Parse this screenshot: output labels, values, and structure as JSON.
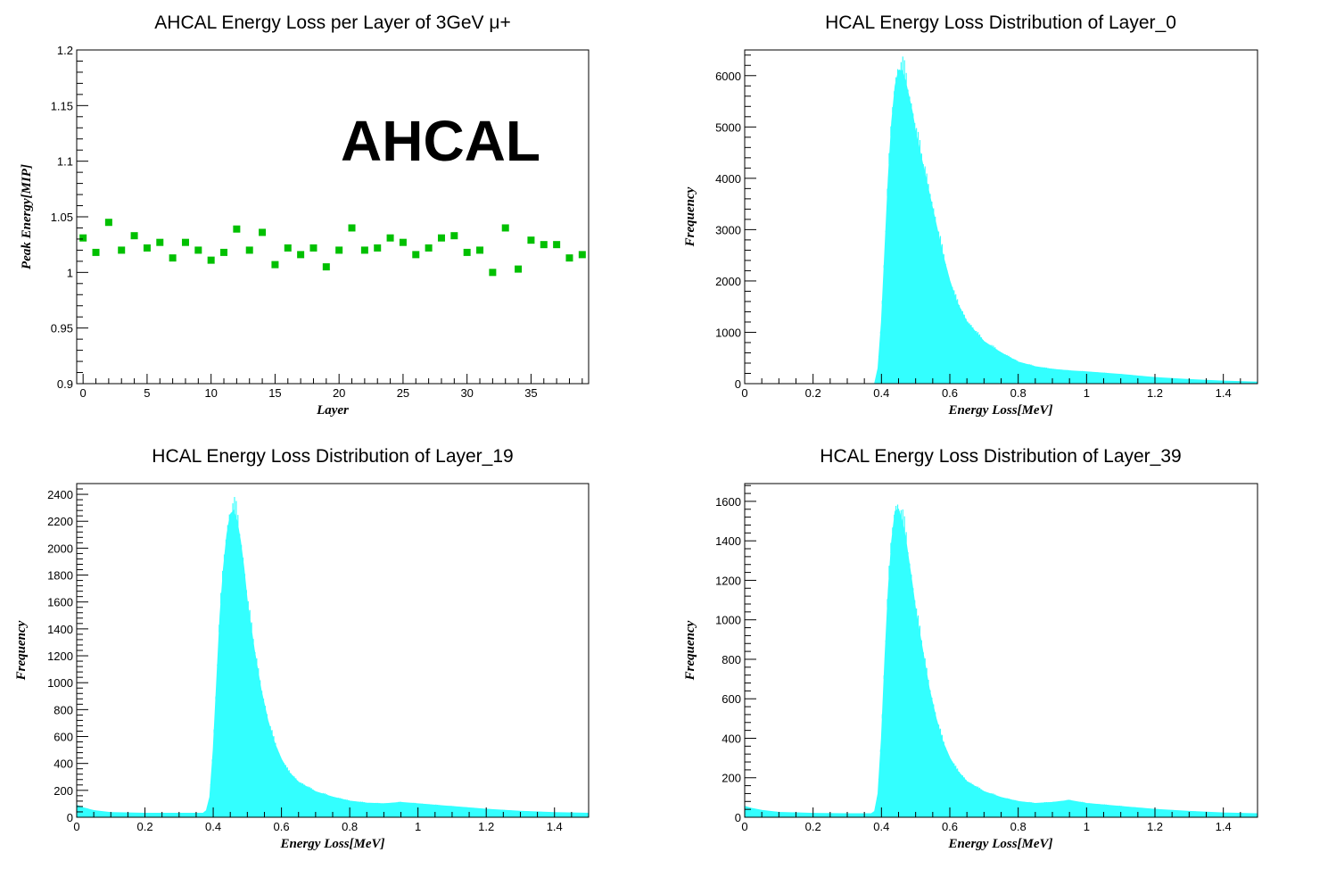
{
  "chart_data": [
    {
      "type": "scatter",
      "title": "AHCAL Energy Loss per Layer of 3GeV μ+",
      "xlabel": "Layer",
      "ylabel": "Peak Energy[MIP]",
      "xlim": [
        -0.5,
        39.5
      ],
      "ylim": [
        0.9,
        1.2
      ],
      "xticks": [
        0,
        5,
        10,
        15,
        20,
        25,
        30,
        35
      ],
      "yticks": [
        0.9,
        0.95,
        1,
        1.05,
        1.1,
        1.15,
        1.2
      ],
      "annotation": "AHCAL",
      "marker_color": "#00c000",
      "x": [
        0,
        1,
        2,
        3,
        4,
        5,
        6,
        7,
        8,
        9,
        10,
        11,
        12,
        13,
        14,
        15,
        16,
        17,
        18,
        19,
        20,
        21,
        22,
        23,
        24,
        25,
        26,
        27,
        28,
        29,
        30,
        31,
        32,
        33,
        34,
        35,
        36,
        37,
        38,
        39
      ],
      "y": [
        1.031,
        1.018,
        1.045,
        1.02,
        1.033,
        1.022,
        1.027,
        1.013,
        1.027,
        1.02,
        1.011,
        1.018,
        1.039,
        1.02,
        1.036,
        1.007,
        1.022,
        1.016,
        1.022,
        1.005,
        1.02,
        1.04,
        1.02,
        1.022,
        1.031,
        1.027,
        1.016,
        1.022,
        1.031,
        1.033,
        1.018,
        1.02,
        1.0,
        1.04,
        1.003,
        1.029,
        1.025,
        1.025,
        1.013,
        1.016
      ]
    },
    {
      "type": "area",
      "title": "HCAL Energy Loss Distribution of Layer_0",
      "xlabel": "Energy Loss[MeV]",
      "ylabel": "Frequency",
      "xlim": [
        0,
        1.5
      ],
      "ylim": [
        0,
        6500
      ],
      "xticks": [
        0,
        0.2,
        0.4,
        0.6,
        0.8,
        1,
        1.2,
        1.4
      ],
      "yticks": [
        0,
        1000,
        2000,
        3000,
        4000,
        5000,
        6000
      ],
      "fill_color": "#33ffff",
      "x": [
        0.0,
        0.36,
        0.38,
        0.39,
        0.4,
        0.41,
        0.42,
        0.43,
        0.44,
        0.45,
        0.46,
        0.47,
        0.48,
        0.49,
        0.5,
        0.52,
        0.54,
        0.56,
        0.58,
        0.6,
        0.62,
        0.65,
        0.7,
        0.75,
        0.8,
        0.85,
        0.9,
        0.95,
        1.0,
        1.1,
        1.2,
        1.3,
        1.4,
        1.5
      ],
      "y": [
        0,
        0,
        0,
        300,
        1200,
        2600,
        4000,
        5100,
        5800,
        6100,
        6100,
        5900,
        5600,
        5300,
        4900,
        4300,
        3700,
        3100,
        2500,
        2000,
        1600,
        1200,
        820,
        600,
        420,
        330,
        280,
        250,
        230,
        180,
        120,
        80,
        50,
        30
      ]
    },
    {
      "type": "area",
      "title": "HCAL Energy Loss Distribution of Layer_19",
      "xlabel": "Energy Loss[MeV]",
      "ylabel": "Frequency",
      "xlim": [
        0,
        1.5
      ],
      "ylim": [
        0,
        2480
      ],
      "xticks": [
        0,
        0.2,
        0.4,
        0.6,
        0.8,
        1,
        1.2,
        1.4
      ],
      "yticks": [
        0,
        200,
        400,
        600,
        800,
        1000,
        1200,
        1400,
        1600,
        1800,
        2000,
        2200,
        2400
      ],
      "fill_color": "#33ffff",
      "x": [
        0.0,
        0.02,
        0.05,
        0.1,
        0.2,
        0.3,
        0.37,
        0.38,
        0.39,
        0.4,
        0.41,
        0.42,
        0.43,
        0.44,
        0.45,
        0.46,
        0.47,
        0.48,
        0.49,
        0.5,
        0.52,
        0.54,
        0.56,
        0.58,
        0.6,
        0.62,
        0.65,
        0.7,
        0.75,
        0.8,
        0.85,
        0.9,
        0.95,
        1.0,
        1.1,
        1.2,
        1.3,
        1.4,
        1.5
      ],
      "y": [
        90,
        70,
        50,
        35,
        30,
        30,
        30,
        50,
        150,
        500,
        1000,
        1500,
        1850,
        2100,
        2250,
        2280,
        2200,
        2050,
        1850,
        1600,
        1250,
        950,
        720,
        550,
        430,
        340,
        260,
        190,
        150,
        120,
        105,
        100,
        110,
        100,
        80,
        60,
        45,
        35,
        30
      ]
    },
    {
      "type": "area",
      "title": "HCAL Energy Loss Distribution of Layer_39",
      "xlabel": "Energy Loss[MeV]",
      "ylabel": "Frequency",
      "xlim": [
        0,
        1.5
      ],
      "ylim": [
        0,
        1690
      ],
      "xticks": [
        0,
        0.2,
        0.4,
        0.6,
        0.8,
        1,
        1.2,
        1.4
      ],
      "yticks": [
        0,
        200,
        400,
        600,
        800,
        1000,
        1200,
        1400,
        1600
      ],
      "fill_color": "#33ffff",
      "x": [
        0.0,
        0.02,
        0.05,
        0.1,
        0.2,
        0.3,
        0.37,
        0.38,
        0.39,
        0.4,
        0.41,
        0.42,
        0.43,
        0.44,
        0.45,
        0.46,
        0.47,
        0.48,
        0.49,
        0.5,
        0.52,
        0.54,
        0.56,
        0.58,
        0.6,
        0.62,
        0.65,
        0.7,
        0.75,
        0.8,
        0.85,
        0.9,
        0.95,
        1.0,
        1.1,
        1.2,
        1.3,
        1.4,
        1.5
      ],
      "y": [
        55,
        45,
        35,
        25,
        20,
        18,
        18,
        30,
        120,
        400,
        800,
        1150,
        1400,
        1550,
        1560,
        1500,
        1420,
        1300,
        1180,
        1050,
        850,
        650,
        500,
        380,
        300,
        240,
        180,
        130,
        100,
        80,
        70,
        75,
        85,
        70,
        55,
        40,
        30,
        22,
        18
      ]
    }
  ]
}
